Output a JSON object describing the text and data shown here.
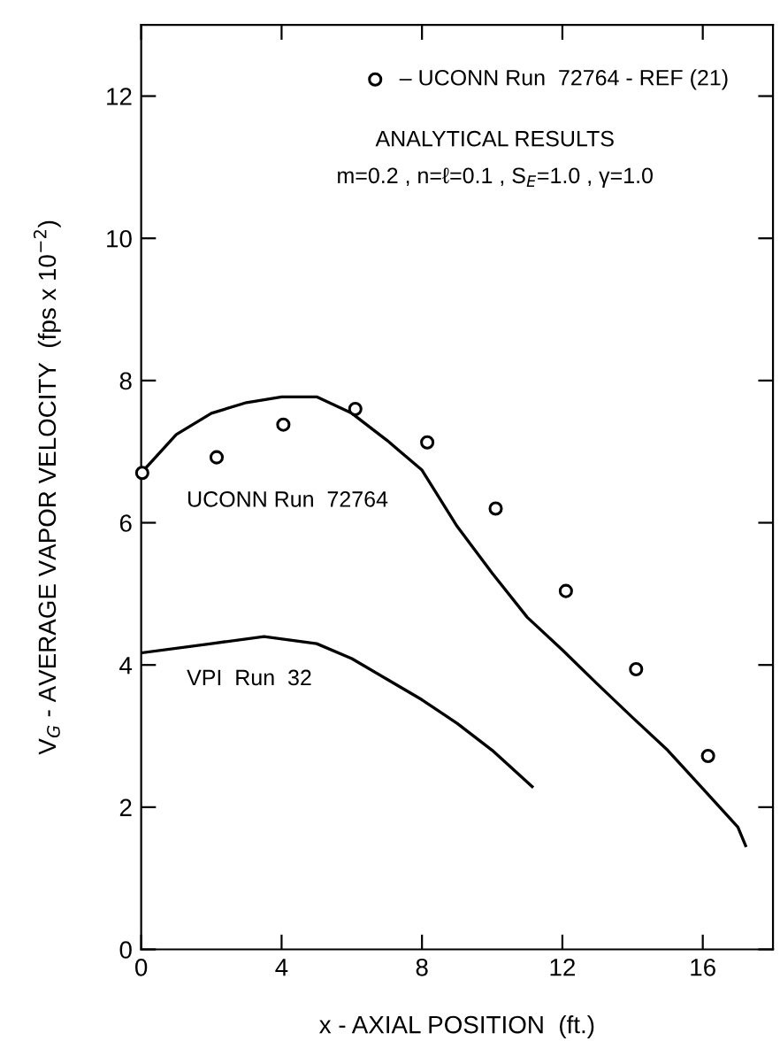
{
  "chart_data": {
    "type": "line",
    "xlabel": "x - AXIAL POSITION  (ft.)",
    "ylabel": "V$_{G}$ - AVERAGE VAPOR VELOCITY  (fps x 10$^{−2}$)",
    "xlim": [
      0,
      18
    ],
    "ylim": [
      0,
      13
    ],
    "xticks": [
      0,
      4,
      8,
      12,
      16
    ],
    "yticks": [
      0,
      2,
      4,
      6,
      8,
      10,
      12
    ],
    "grid": false,
    "legend": "top right",
    "annotations": [
      "ANALYTICAL RESULTS",
      "m=0.2 , n=ℓ=0.1 , S$_{E}$=1.0 , γ=1.0",
      "UCONN Run  72764",
      "VPI  Run  32"
    ],
    "series": [
      {
        "name": "– UCONN Run  72764 - REF (21)",
        "type": "scatter",
        "marker": "circle",
        "color": "#000000",
        "x": [
          0.03,
          2.15,
          4.05,
          6.1,
          8.15,
          10.1,
          12.1,
          14.1,
          16.15
        ],
        "values": [
          6.7,
          6.92,
          7.38,
          7.6,
          7.13,
          6.2,
          5.04,
          3.94,
          2.72
        ]
      },
      {
        "color": "#000000",
        "x": [
          0,
          1,
          2,
          3,
          4,
          5,
          6,
          7,
          8,
          9,
          10,
          11,
          12,
          13,
          14,
          15,
          16,
          17,
          17.22
        ],
        "values": [
          6.7,
          7.24,
          7.54,
          7.69,
          7.77,
          7.77,
          7.54,
          7.16,
          6.74,
          5.95,
          5.29,
          4.67,
          4.21,
          3.73,
          3.26,
          2.8,
          2.26,
          1.72,
          1.46
        ]
      },
      {
        "color": "#000000",
        "x": [
          0,
          2,
          3.5,
          5,
          6,
          7,
          8,
          9,
          10,
          11.14
        ],
        "values": [
          4.17,
          4.3,
          4.4,
          4.3,
          4.09,
          3.8,
          3.51,
          3.18,
          2.8,
          2.29
        ]
      }
    ]
  }
}
